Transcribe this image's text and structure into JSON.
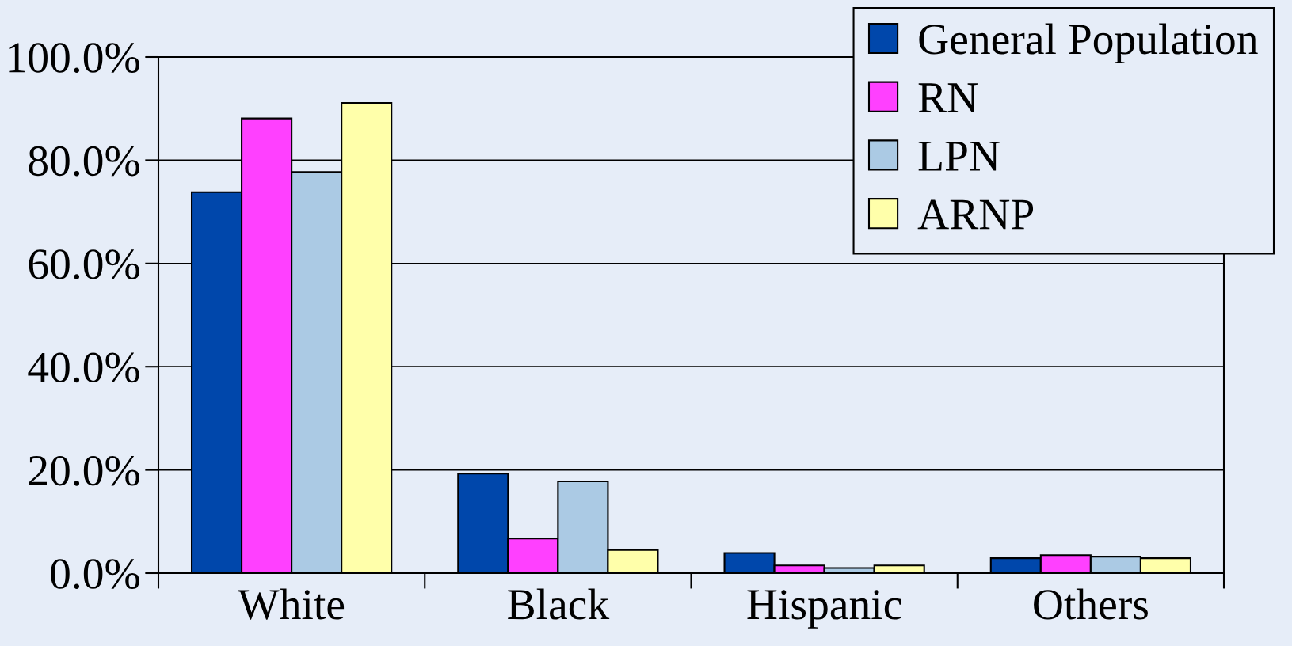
{
  "chart_data": {
    "type": "bar",
    "categories": [
      "White",
      "Black",
      "Hispanic",
      "Others"
    ],
    "series": [
      {
        "name": "General Population",
        "color": "#0047ab",
        "values": [
          73.8,
          19.3,
          3.9,
          2.9
        ]
      },
      {
        "name": "RN",
        "color": "#ff40ff",
        "values": [
          88.1,
          6.7,
          1.5,
          3.5
        ]
      },
      {
        "name": "LPN",
        "color": "#abcae4",
        "values": [
          77.7,
          17.8,
          1.0,
          3.2
        ]
      },
      {
        "name": "ARNP",
        "color": "#ffffaa",
        "values": [
          91.1,
          4.5,
          1.5,
          2.9
        ]
      }
    ],
    "ylim": [
      0,
      100
    ],
    "yticks": [
      {
        "value": 0,
        "label": "0.0%"
      },
      {
        "value": 20,
        "label": "20.0%"
      },
      {
        "value": 40,
        "label": "40.0%"
      },
      {
        "value": 60,
        "label": "60.0%"
      },
      {
        "value": 80,
        "label": "80.0%"
      },
      {
        "value": 100,
        "label": "100.0%"
      }
    ],
    "grid": "y",
    "legend": "top right"
  }
}
